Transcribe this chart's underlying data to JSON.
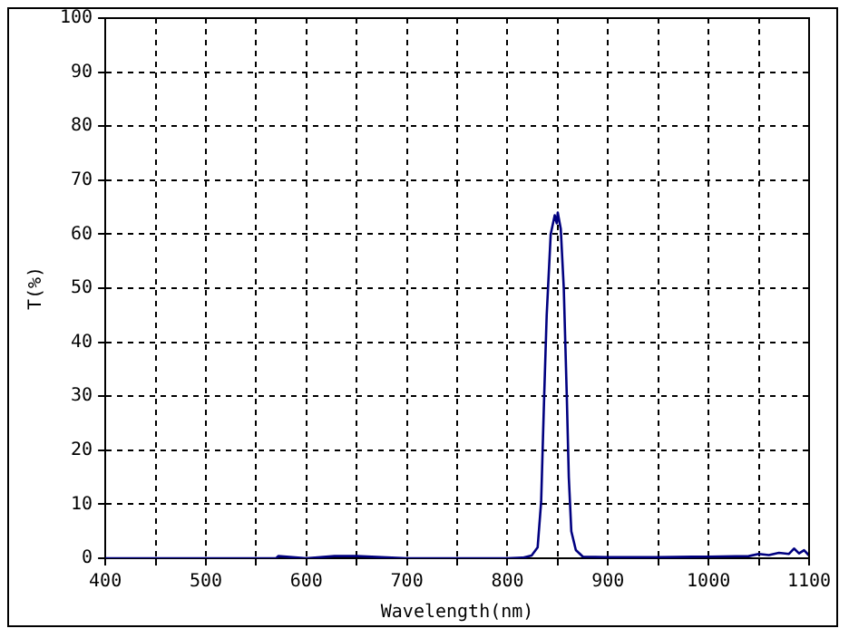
{
  "chart_data": {
    "type": "line",
    "xlabel": "Wavelength(nm)",
    "ylabel": "T(%)",
    "xlim": [
      400,
      1100
    ],
    "ylim": [
      0,
      100
    ],
    "xticks": [
      400,
      {
        "value": 450,
        "label": null
      },
      500,
      {
        "value": 550,
        "label": null
      },
      600,
      {
        "value": 650,
        "label": null
      },
      700,
      {
        "value": 750,
        "label": null
      },
      800,
      {
        "value": 850,
        "label": null
      },
      900,
      {
        "value": 950,
        "label": null
      },
      1000,
      {
        "value": 1050,
        "label": null
      },
      1100
    ],
    "yticks": [
      0,
      10,
      20,
      30,
      40,
      50,
      60,
      70,
      80,
      90,
      100
    ],
    "grid": true,
    "marker": "none",
    "line_style": "solid",
    "series": [
      {
        "color": "#000080",
        "x": [
          400,
          500,
          570,
          572,
          600,
          628,
          650,
          700,
          800,
          815,
          824,
          830,
          833.5,
          836.5,
          839,
          843,
          847,
          849,
          850,
          853,
          856,
          859,
          861,
          863.5,
          868,
          875,
          900,
          950,
          1000,
          1040,
          1050,
          1060,
          1070,
          1080,
          1085,
          1090,
          1095,
          1100
        ],
        "values": [
          0,
          0,
          0,
          0.4,
          0,
          0.4,
          0.4,
          0,
          0,
          0.1,
          0.5,
          2,
          10.5,
          30,
          45,
          60,
          63.5,
          62,
          64,
          61,
          50,
          30,
          15,
          5,
          1.5,
          0.3,
          0.2,
          0.2,
          0.3,
          0.4,
          0.8,
          0.6,
          1,
          0.8,
          1.8,
          0.9,
          1.5,
          0.5
        ]
      }
    ]
  }
}
